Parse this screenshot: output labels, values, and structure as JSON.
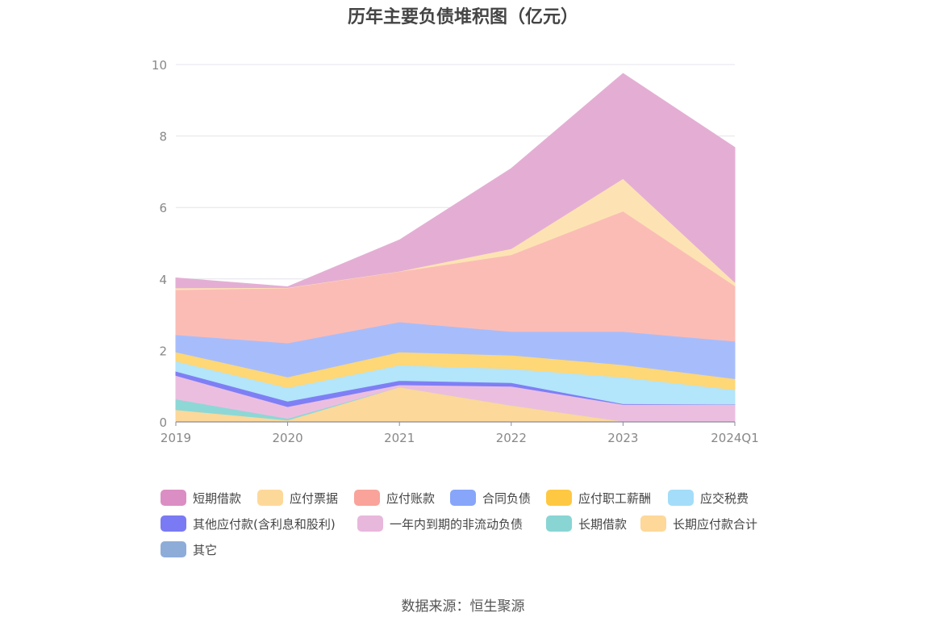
{
  "title": "历年主要负债堆积图（亿元）",
  "source": "数据来源：恒生聚源",
  "chart_data": {
    "type": "area",
    "stacked": true,
    "title": "历年主要负债堆积图（亿元）",
    "xlabel": "",
    "ylabel": "",
    "categories": [
      "2019",
      "2020",
      "2021",
      "2022",
      "2023",
      "2024Q1"
    ],
    "ylim": [
      0,
      10
    ],
    "yticks": [
      0,
      2,
      4,
      6,
      8,
      10
    ],
    "grid": true,
    "legend_position": "bottom",
    "series": [
      {
        "name": "其它",
        "color": "#8eacd8",
        "values": [
          0,
          0,
          0,
          0,
          0,
          0
        ]
      },
      {
        "name": "长期应付款合计",
        "color": "#fcd89a",
        "values": [
          0.34,
          0.05,
          0.98,
          0.47,
          0.02,
          0
        ]
      },
      {
        "name": "长期借款",
        "color": "#8dd8d6",
        "values": [
          0.3,
          0.05,
          0,
          0,
          0,
          0
        ]
      },
      {
        "name": "一年内到期的非流动负债",
        "color": "#ebbee0",
        "values": [
          0.66,
          0.33,
          0.06,
          0.53,
          0.47,
          0.49
        ]
      },
      {
        "name": "其他应付款(含利息和股利)",
        "color": "#7f7ff5",
        "values": [
          0.12,
          0.15,
          0.12,
          0.1,
          0.02,
          0.01
        ]
      },
      {
        "name": "应交税费",
        "color": "#b3e5fb",
        "values": [
          0.28,
          0.38,
          0.43,
          0.39,
          0.74,
          0.4
        ]
      },
      {
        "name": "应付职工薪酬",
        "color": "#fed776",
        "values": [
          0.26,
          0.3,
          0.37,
          0.38,
          0.35,
          0.31
        ]
      },
      {
        "name": "合同负债",
        "color": "#a7bdfb",
        "values": [
          0.48,
          0.95,
          0.84,
          0.66,
          0.93,
          1.05
        ]
      },
      {
        "name": "应付账款",
        "color": "#fbbcb6",
        "values": [
          1.26,
          1.54,
          1.41,
          2.15,
          3.37,
          1.55
        ]
      },
      {
        "name": "应付票据",
        "color": "#fde3b3",
        "values": [
          0.05,
          0.01,
          0.01,
          0.17,
          0.91,
          0.1
        ]
      },
      {
        "name": "短期借款",
        "color": "#e4aed4",
        "values": [
          0.28,
          0.02,
          0.87,
          2.24,
          2.94,
          3.77
        ]
      }
    ]
  },
  "legend": [
    {
      "label": "短期借款",
      "color": "#db8ec3"
    },
    {
      "label": "应付票据",
      "color": "#fdd999"
    },
    {
      "label": "应付账款",
      "color": "#f9a39a"
    },
    {
      "label": "合同负债",
      "color": "#87a5f9"
    },
    {
      "label": "应付职工薪酬",
      "color": "#fec842"
    },
    {
      "label": "应交税费",
      "color": "#a3ddf9"
    },
    {
      "label": "其他应付款(含利息和股利)",
      "color": "#7a7af4"
    },
    {
      "label": "一年内到期的非流动负债",
      "color": "#e8b7dc"
    },
    {
      "label": "长期借款",
      "color": "#88d5d4"
    },
    {
      "label": "长期应付款合计",
      "color": "#fdd899"
    },
    {
      "label": "其它",
      "color": "#8eacd8"
    }
  ]
}
